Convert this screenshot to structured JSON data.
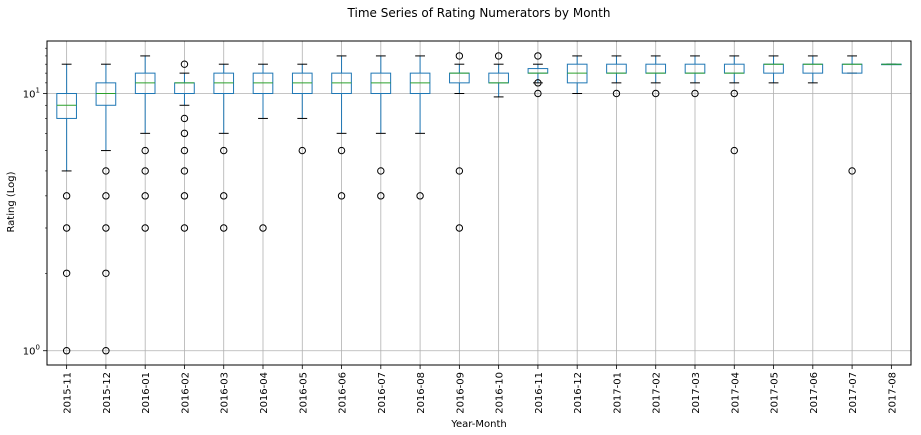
{
  "chart_data": {
    "type": "box",
    "title": "Time Series of Rating Numerators by Month",
    "xlabel": "Year-Month",
    "ylabel": "Rating (Log)",
    "yscale": "log",
    "ylim": [
      0.88,
      16
    ],
    "yticks": [
      {
        "value": 1,
        "base": "10",
        "exp": "0"
      },
      {
        "value": 10,
        "base": "10",
        "exp": "1"
      }
    ],
    "grid": true,
    "colors": {
      "box": "#1f77b4",
      "median": "#2ca02c",
      "whisker": "#000000",
      "grid": "#b0b0b0"
    },
    "categories": [
      "2015-11",
      "2015-12",
      "2016-01",
      "2016-02",
      "2016-03",
      "2016-04",
      "2016-05",
      "2016-06",
      "2016-07",
      "2016-08",
      "2016-09",
      "2016-10",
      "2016-11",
      "2016-12",
      "2017-01",
      "2017-02",
      "2017-03",
      "2017-04",
      "2017-05",
      "2017-06",
      "2017-07",
      "2017-08"
    ],
    "boxes": [
      {
        "category": "2015-11",
        "whislo": 5,
        "q1": 8,
        "med": 9,
        "q3": 10,
        "whishi": 13,
        "fliers": [
          4,
          3,
          2,
          1
        ]
      },
      {
        "category": "2015-12",
        "whislo": 6,
        "q1": 9,
        "med": 10,
        "q3": 11,
        "whishi": 13,
        "fliers": [
          5,
          4,
          3,
          2,
          1
        ]
      },
      {
        "category": "2016-01",
        "whislo": 7,
        "q1": 10,
        "med": 11,
        "q3": 12,
        "whishi": 14,
        "fliers": [
          6,
          5,
          4,
          3
        ]
      },
      {
        "category": "2016-02",
        "whislo": 9,
        "q1": 10,
        "med": 11,
        "q3": 11,
        "whishi": 12,
        "fliers": [
          13,
          8,
          7,
          6,
          5,
          4,
          3
        ]
      },
      {
        "category": "2016-03",
        "whislo": 7,
        "q1": 10,
        "med": 11,
        "q3": 12,
        "whishi": 13,
        "fliers": [
          6,
          4,
          3
        ]
      },
      {
        "category": "2016-04",
        "whislo": 8,
        "q1": 10,
        "med": 11,
        "q3": 12,
        "whishi": 13,
        "fliers": [
          3
        ]
      },
      {
        "category": "2016-05",
        "whislo": 8,
        "q1": 10,
        "med": 11,
        "q3": 12,
        "whishi": 13,
        "fliers": [
          6
        ]
      },
      {
        "category": "2016-06",
        "whislo": 7,
        "q1": 10,
        "med": 11,
        "q3": 12,
        "whishi": 14,
        "fliers": [
          6,
          4
        ]
      },
      {
        "category": "2016-07",
        "whislo": 7,
        "q1": 10,
        "med": 11,
        "q3": 12,
        "whishi": 14,
        "fliers": [
          5,
          4
        ]
      },
      {
        "category": "2016-08",
        "whislo": 7,
        "q1": 10,
        "med": 11,
        "q3": 12,
        "whishi": 14,
        "fliers": [
          4
        ]
      },
      {
        "category": "2016-09",
        "whislo": 10,
        "q1": 11,
        "med": 12,
        "q3": 12,
        "whishi": 13,
        "fliers": [
          14,
          5,
          3
        ]
      },
      {
        "category": "2016-10",
        "whislo": 9.7,
        "q1": 11,
        "med": 11,
        "q3": 12,
        "whishi": 13,
        "fliers": [
          14
        ]
      },
      {
        "category": "2016-11",
        "whislo": 11,
        "q1": 12,
        "med": 12,
        "q3": 12.5,
        "whishi": 13,
        "fliers": [
          14,
          11,
          10
        ]
      },
      {
        "category": "2016-12",
        "whislo": 10,
        "q1": 11,
        "med": 12,
        "q3": 13,
        "whishi": 14,
        "fliers": []
      },
      {
        "category": "2017-01",
        "whislo": 11,
        "q1": 12,
        "med": 12,
        "q3": 13,
        "whishi": 14,
        "fliers": [
          10
        ]
      },
      {
        "category": "2017-02",
        "whislo": 11,
        "q1": 12,
        "med": 12,
        "q3": 13,
        "whishi": 14,
        "fliers": [
          10
        ]
      },
      {
        "category": "2017-03",
        "whislo": 11,
        "q1": 12,
        "med": 12,
        "q3": 13,
        "whishi": 14,
        "fliers": [
          10
        ]
      },
      {
        "category": "2017-04",
        "whislo": 11,
        "q1": 12,
        "med": 12,
        "q3": 13,
        "whishi": 14,
        "fliers": [
          10,
          6
        ]
      },
      {
        "category": "2017-05",
        "whislo": 11,
        "q1": 12,
        "med": 13,
        "q3": 13,
        "whishi": 14,
        "fliers": []
      },
      {
        "category": "2017-06",
        "whislo": 11,
        "q1": 12,
        "med": 13,
        "q3": 13,
        "whishi": 14,
        "fliers": []
      },
      {
        "category": "2017-07",
        "whislo": 12,
        "q1": 12,
        "med": 13,
        "q3": 13,
        "whishi": 14,
        "fliers": [
          5
        ]
      },
      {
        "category": "2017-08",
        "whislo": 13,
        "q1": 13,
        "med": 13,
        "q3": 13,
        "whishi": 13,
        "fliers": []
      }
    ]
  }
}
